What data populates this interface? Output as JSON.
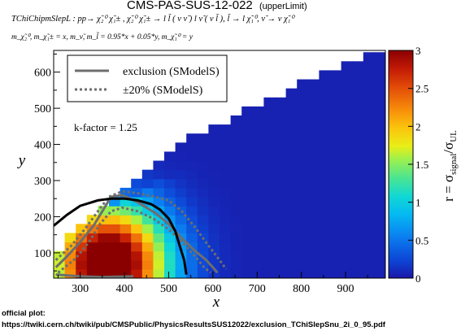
{
  "header": {
    "title": "CMS-PAS-SUS-12-022",
    "subtitle": "(upperLimit)",
    "process_line": "TChiChipmSlepL : pp→ χ̃₂⁰ χ̃₁± , χ̃₂⁰ χ̃₁± → l l̃ ( ν ν̃ ) l ν̃ ( ν l̃ ), l̃ → l χ̃₁⁰, ν̃ → ν χ̃₁⁰",
    "mass_line": "m_χ̃₂⁰, m_χ̃₁± = x, m_ν̃, m_l̃ = 0.95*x + 0.05*y, m_χ̃₁⁰ = y"
  },
  "footer": {
    "line1": "official plot:",
    "line2": "https://twiki.cern.ch/twiki/pub/CMSPublic/PhysicsResultsSUS12022/exclusion_TChiSlepSnu_2i_0_95.pdf"
  },
  "chart_data": {
    "type": "heatmap",
    "xlabel": "x",
    "ylabel": "y",
    "zlabel": "r = σ_signal/σ_UL",
    "xlim": [
      240,
      990
    ],
    "ylim": [
      30,
      660
    ],
    "zlim": [
      0,
      3
    ],
    "x_ticks": [
      300,
      400,
      500,
      600,
      700,
      800,
      900
    ],
    "y_ticks": [
      100,
      200,
      300,
      400,
      500,
      600
    ],
    "z_ticks": [
      0,
      0.5,
      1,
      1.5,
      2,
      2.5,
      3
    ],
    "annotation": "k-factor = 1.25",
    "legend": [
      {
        "label": "exclusion (SModelS)",
        "style": "solid",
        "color": "#6e6e6e"
      },
      {
        "label": "±20% (SModelS)",
        "style": "dotted",
        "color": "#6e6e6e"
      }
    ],
    "legend_position": "top-left",
    "grid": false,
    "colormap": "rainbow (blue → cyan → yellow → red)",
    "grid_step": 25,
    "region_bounds": [
      [
        240,
        30,
        100
      ],
      [
        300,
        30,
        175
      ],
      [
        350,
        30,
        225
      ],
      [
        400,
        30,
        290
      ],
      [
        450,
        30,
        330
      ],
      [
        500,
        30,
        380
      ],
      [
        550,
        30,
        420
      ],
      [
        600,
        30,
        450
      ],
      [
        650,
        30,
        480
      ],
      [
        700,
        30,
        510
      ],
      [
        750,
        30,
        540
      ],
      [
        800,
        30,
        570
      ],
      [
        850,
        30,
        600
      ],
      [
        900,
        30,
        630
      ],
      [
        950,
        30,
        650
      ],
      [
        975,
        30,
        660
      ]
    ],
    "obs_exclusion": [
      [
        240,
        175
      ],
      [
        270,
        205
      ],
      [
        300,
        230
      ],
      [
        340,
        245
      ],
      [
        370,
        250
      ],
      [
        400,
        250
      ],
      [
        430,
        245
      ],
      [
        460,
        235
      ],
      [
        480,
        220
      ],
      [
        500,
        195
      ],
      [
        515,
        160
      ],
      [
        525,
        120
      ],
      [
        535,
        80
      ],
      [
        540,
        40
      ]
    ],
    "smodels_exclusion": [
      [
        245,
        60
      ],
      [
        270,
        90
      ],
      [
        300,
        130
      ],
      [
        330,
        175
      ],
      [
        350,
        215
      ],
      [
        370,
        255
      ],
      [
        395,
        260
      ],
      [
        430,
        240
      ],
      [
        470,
        210
      ],
      [
        500,
        180
      ],
      [
        530,
        140
      ],
      [
        560,
        105
      ],
      [
        585,
        80
      ],
      [
        600,
        60
      ],
      [
        610,
        45
      ]
    ],
    "smodels_exclusion_lower_branch": [
      [
        245,
        40
      ],
      [
        300,
        35
      ],
      [
        350,
        33
      ],
      [
        420,
        35
      ]
    ],
    "smodels_plus20": [
      [
        245,
        80
      ],
      [
        280,
        120
      ],
      [
        310,
        165
      ],
      [
        340,
        215
      ],
      [
        365,
        255
      ],
      [
        395,
        270
      ],
      [
        430,
        265
      ],
      [
        470,
        255
      ],
      [
        500,
        245
      ],
      [
        530,
        215
      ],
      [
        560,
        170
      ],
      [
        590,
        120
      ],
      [
        615,
        80
      ],
      [
        630,
        55
      ]
    ],
    "smodels_minus20": [
      [
        250,
        45
      ],
      [
        290,
        85
      ],
      [
        320,
        130
      ],
      [
        345,
        180
      ],
      [
        370,
        215
      ],
      [
        395,
        225
      ],
      [
        430,
        215
      ],
      [
        465,
        195
      ],
      [
        500,
        165
      ],
      [
        530,
        130
      ],
      [
        560,
        90
      ],
      [
        580,
        60
      ],
      [
        595,
        45
      ]
    ]
  }
}
